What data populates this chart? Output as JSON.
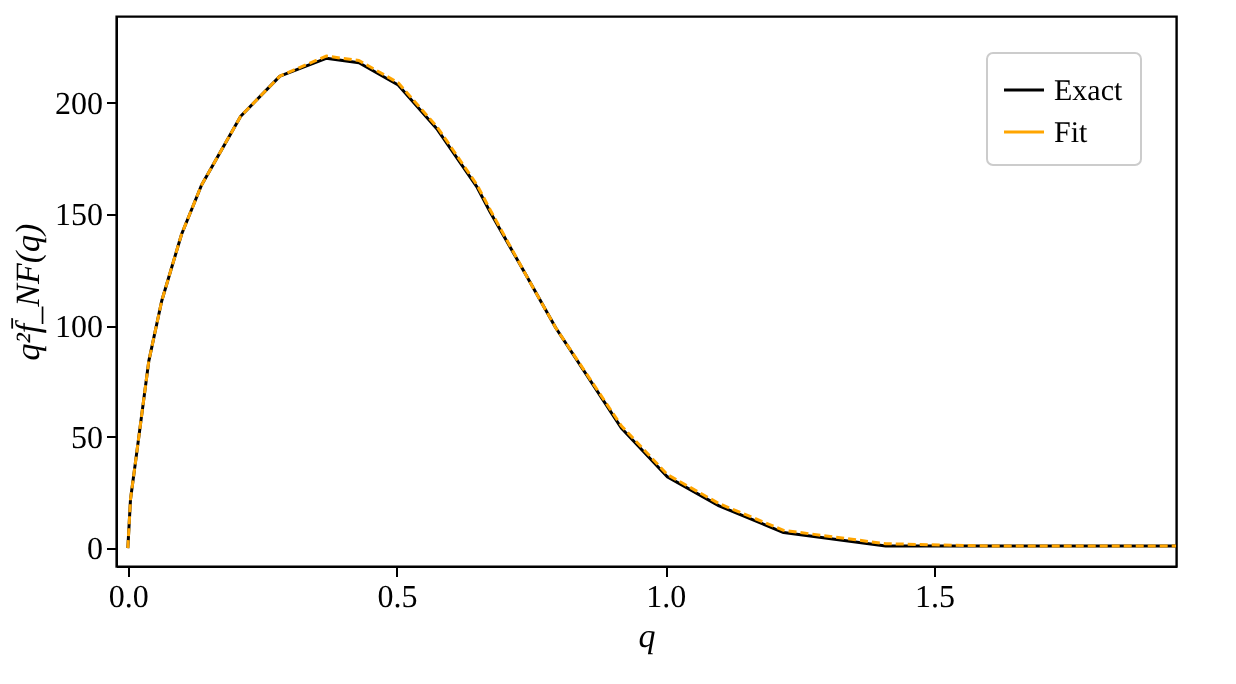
{
  "chart_data": {
    "type": "line",
    "xlabel": "q",
    "ylabel": "q²f̄_NF(q)",
    "xlim": [
      -0.022,
      1.95
    ],
    "ylim": [
      -8,
      239
    ],
    "xticks": [
      {
        "value": 0,
        "label": "0.0"
      },
      {
        "value": 0.5,
        "label": "0.5"
      },
      {
        "value": 1,
        "label": "1.0"
      },
      {
        "value": 1.5,
        "label": "1.5"
      }
    ],
    "yticks": [
      0,
      50,
      100,
      150,
      200
    ],
    "grid": false,
    "legend": "top right",
    "marker": "none",
    "x": [
      0,
      0.005,
      0.015,
      0.039,
      0.063,
      0.1,
      0.137,
      0.21,
      0.283,
      0.369,
      0.43,
      0.503,
      0.576,
      0.65,
      0.674,
      0.74,
      0.796,
      0.918,
      1.004,
      1.1,
      1.22,
      1.41,
      1.6,
      1.8,
      1.95
    ],
    "series": [
      {
        "name": "Exact",
        "color": "#000000",
        "line_style": "solid",
        "values": [
          0,
          22,
          40,
          84,
          111,
          141,
          163,
          194,
          212,
          220,
          218,
          208,
          188,
          162,
          151,
          123,
          99,
          54,
          32,
          19,
          7,
          1,
          1,
          1,
          1
        ]
      },
      {
        "name": "Fit",
        "color": "#ffa500",
        "line_style": "dashed",
        "values": [
          0,
          22,
          40,
          84,
          111,
          141,
          163,
          194,
          212,
          221,
          219,
          209,
          189,
          163,
          152,
          123,
          99,
          55,
          33,
          20,
          8,
          2,
          1,
          1,
          1
        ]
      }
    ]
  }
}
